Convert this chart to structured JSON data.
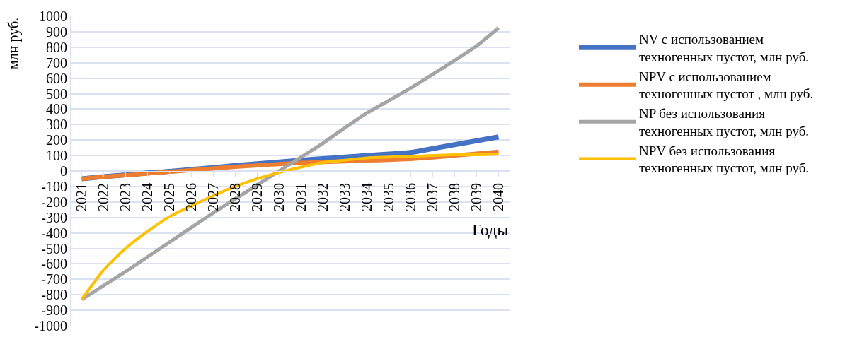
{
  "chart_data": {
    "type": "line",
    "xlabel": "Годы",
    "ylabel": "млн руб.",
    "categories": [
      "2021",
      "2022",
      "2023",
      "2024",
      "2025",
      "2026",
      "2027",
      "2028",
      "2029",
      "2030",
      "2031",
      "2032",
      "2033",
      "2034",
      "2035",
      "2036",
      "2037",
      "2038",
      "2039",
      "2040"
    ],
    "series": [
      {
        "name": "NV с использованием\nтехногенных пустот, млн руб.",
        "color": "#4472c4",
        "values": [
          -50,
          -37,
          -25,
          -13,
          -2,
          10,
          22,
          35,
          47,
          58,
          70,
          80,
          90,
          100,
          110,
          120,
          145,
          170,
          195,
          220
        ]
      },
      {
        "name": "NPV с использованием\nтехногенных пустот , млн руб.",
        "color": "#ed7d31",
        "values": [
          -50,
          -38,
          -27,
          -16,
          -5,
          6,
          17,
          27,
          36,
          45,
          52,
          58,
          63,
          68,
          72,
          78,
          88,
          100,
          112,
          125
        ]
      },
      {
        "name": "NP без использования\nтехногенных пустот, млн руб.",
        "color": "#a5a5a5",
        "values": [
          -830,
          -740,
          -650,
          -555,
          -460,
          -365,
          -270,
          -180,
          -90,
          0,
          90,
          180,
          280,
          375,
          455,
          537,
          625,
          715,
          808,
          925
        ]
      },
      {
        "name": "NPV без использования\nтехногенных пустот, млн руб.",
        "color": "#ffc000",
        "values": [
          -830,
          -640,
          -500,
          -390,
          -295,
          -225,
          -160,
          -100,
          -50,
          -10,
          25,
          55,
          70,
          85,
          90,
          95,
          100,
          105,
          105,
          110
        ]
      }
    ],
    "ylim": [
      -1000,
      1000
    ],
    "yticks": [
      -1000,
      -900,
      -800,
      -700,
      -600,
      -500,
      -400,
      -300,
      -200,
      -100,
      0,
      100,
      200,
      300,
      400,
      500,
      600,
      700,
      800,
      900,
      1000
    ],
    "grid": "y",
    "legend": "right",
    "line_style": "solid",
    "marker": "none"
  }
}
